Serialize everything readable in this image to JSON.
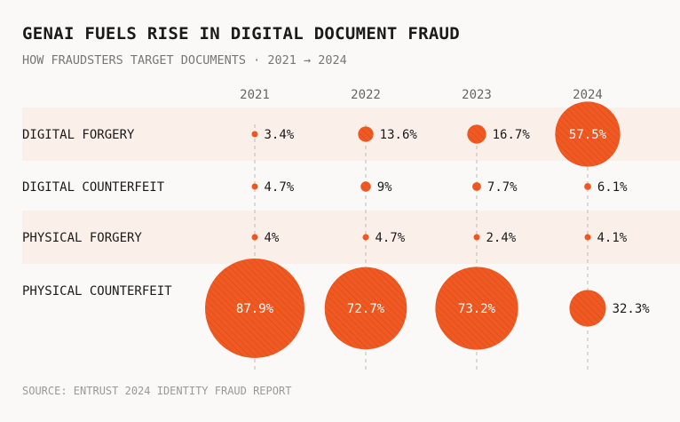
{
  "chart_data": {
    "type": "bubble-grid",
    "title": "GENAI FUELS RISE IN DIGITAL DOCUMENT FRAUD",
    "subtitle": "HOW FRAUDSTERS TARGET DOCUMENTS · 2021 → 2024",
    "source": "SOURCE: ENTRUST 2024 IDENTITY FRAUD REPORT",
    "columns": [
      "2021",
      "2022",
      "2023",
      "2024"
    ],
    "rows": [
      {
        "label": "DIGITAL FORGERY",
        "values": [
          3.4,
          13.6,
          16.7,
          57.5
        ],
        "shaded": true
      },
      {
        "label": "DIGITAL COUNTERFEIT",
        "values": [
          4.7,
          9,
          7.7,
          6.1
        ],
        "shaded": false
      },
      {
        "label": "PHYSICAL FORGERY",
        "values": [
          4,
          4.7,
          2.4,
          4.1
        ],
        "shaded": true
      },
      {
        "label": "PHYSICAL COUNTERFEIT",
        "values": [
          87.9,
          72.7,
          73.2,
          32.3
        ],
        "shaded": false
      }
    ],
    "unit": "%",
    "colors": {
      "bubble": "#f05a22",
      "hatch": "#d9481a",
      "band": "#fbefe9",
      "text": "#1a1a1a"
    }
  }
}
